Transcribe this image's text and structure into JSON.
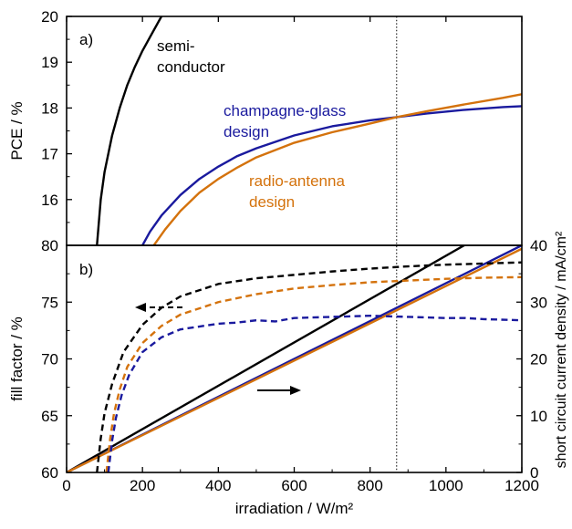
{
  "chart_data": [
    {
      "panel_label": "a)",
      "type": "line",
      "ylabel": "PCE / %",
      "xlim": [
        0,
        1200
      ],
      "ylim": [
        15,
        20
      ],
      "yticks": [
        16,
        17,
        18,
        19,
        20
      ],
      "xticks": [
        0,
        200,
        400,
        600,
        800,
        1000,
        1200
      ],
      "reference_x": 870,
      "series": [
        {
          "id": "semiconductor",
          "color": "#000000",
          "dashed": false,
          "x": [
            80,
            90,
            100,
            120,
            140,
            160,
            180,
            200,
            220,
            250
          ],
          "y": [
            15.0,
            16.0,
            16.6,
            17.4,
            18.0,
            18.5,
            18.9,
            19.25,
            19.55,
            20.0
          ]
        },
        {
          "id": "champagne-glass",
          "color": "#1a1a9e",
          "dashed": false,
          "x": [
            200,
            220,
            250,
            300,
            350,
            400,
            450,
            500,
            600,
            700,
            800,
            870,
            950,
            1050,
            1150,
            1200
          ],
          "y": [
            15.0,
            15.3,
            15.65,
            16.1,
            16.45,
            16.72,
            16.95,
            17.12,
            17.4,
            17.6,
            17.73,
            17.8,
            17.88,
            17.96,
            18.02,
            18.04
          ]
        },
        {
          "id": "radio-antenna",
          "color": "#d4720c",
          "dashed": false,
          "x": [
            230,
            260,
            300,
            350,
            400,
            450,
            500,
            600,
            700,
            800,
            870,
            950,
            1050,
            1150,
            1200
          ],
          "y": [
            15.0,
            15.35,
            15.75,
            16.15,
            16.45,
            16.7,
            16.92,
            17.24,
            17.47,
            17.66,
            17.8,
            17.93,
            18.08,
            18.22,
            18.3
          ]
        }
      ],
      "labels": [
        {
          "text": "semi-",
          "color": "#000000"
        },
        {
          "text": "conductor",
          "color": "#000000"
        },
        {
          "text": "champagne-glass",
          "color": "#1a1a9e"
        },
        {
          "text": "design",
          "color": "#1a1a9e"
        },
        {
          "text": "radio-antenna",
          "color": "#d4720c"
        },
        {
          "text": "design",
          "color": "#d4720c"
        }
      ]
    },
    {
      "panel_label": "b)",
      "type": "line",
      "xlabel": "irradiation / W/m²",
      "ylabel": "fill factor / %",
      "ylabel_right": "short circuit current density / mA/cm²",
      "xlim": [
        0,
        1200
      ],
      "ylim": [
        60,
        80
      ],
      "ylim_right": [
        0,
        40
      ],
      "xticks": [
        0,
        200,
        400,
        600,
        800,
        1000,
        1200
      ],
      "yticks": [
        60,
        65,
        70,
        75,
        80
      ],
      "yticks_right": [
        0,
        10,
        20,
        30,
        40
      ],
      "reference_x": 870,
      "series_fill_factor": [
        {
          "id": "ff-semiconductor",
          "color": "#000000",
          "dashed": true,
          "x": [
            80,
            90,
            100,
            120,
            150,
            200,
            250,
            300,
            400,
            500,
            600,
            700,
            800,
            900,
            1000,
            1100,
            1200
          ],
          "y": [
            60.0,
            63.0,
            65.2,
            67.8,
            70.6,
            73.0,
            74.5,
            75.5,
            76.6,
            77.1,
            77.4,
            77.7,
            77.95,
            78.15,
            78.3,
            78.4,
            78.5
          ]
        },
        {
          "id": "ff-radio-antenna",
          "color": "#d4720c",
          "dashed": true,
          "x": [
            105,
            115,
            125,
            140,
            160,
            200,
            250,
            300,
            400,
            500,
            600,
            700,
            800,
            900,
            1000,
            1100,
            1200
          ],
          "y": [
            60.0,
            63.0,
            65.2,
            67.3,
            69.3,
            71.4,
            72.9,
            73.9,
            75.0,
            75.7,
            76.2,
            76.5,
            76.75,
            76.9,
            77.05,
            77.15,
            77.2
          ]
        },
        {
          "id": "ff-champagne-glass",
          "color": "#1a1a9e",
          "dashed": true,
          "x": [
            110,
            120,
            130,
            145,
            165,
            200,
            250,
            300,
            400,
            450,
            500,
            550,
            600,
            700,
            800,
            900,
            1000,
            1050,
            1100,
            1200
          ],
          "y": [
            60.0,
            62.8,
            64.8,
            66.8,
            68.6,
            70.6,
            71.9,
            72.6,
            73.1,
            73.2,
            73.4,
            73.3,
            73.6,
            73.7,
            73.8,
            73.7,
            73.6,
            73.6,
            73.5,
            73.4
          ]
        }
      ],
      "series_current_density": [
        {
          "id": "jsc-semiconductor",
          "color": "#000000",
          "dashed": false,
          "x": [
            0,
            1200
          ],
          "y": [
            0,
            45.8
          ]
        },
        {
          "id": "jsc-champagne-glass",
          "color": "#1a1a9e",
          "dashed": false,
          "x": [
            0,
            1200
          ],
          "y": [
            0,
            40.0
          ]
        },
        {
          "id": "jsc-radio-antenna",
          "color": "#d4720c",
          "dashed": false,
          "x": [
            0,
            1200
          ],
          "y": [
            0,
            39.4
          ]
        }
      ],
      "arrows": [
        {
          "direction": "left",
          "meaning": "fill factor axis"
        },
        {
          "direction": "right",
          "meaning": "short circuit current density axis"
        }
      ]
    }
  ]
}
